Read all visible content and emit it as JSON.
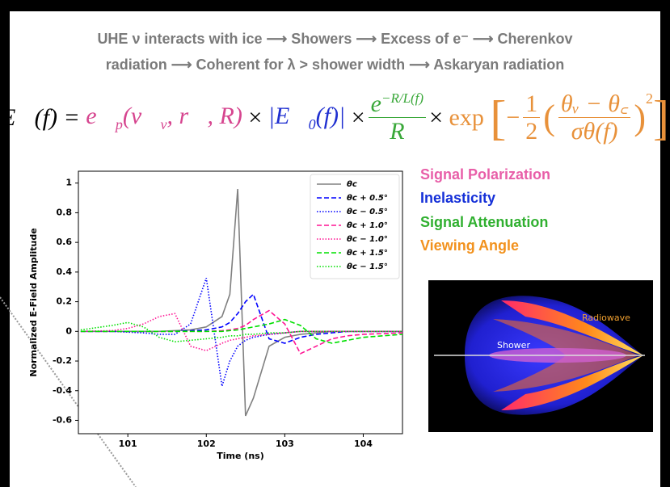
{
  "header": {
    "line1": "UHE ν interacts with ice ⟶ Showers ⟶ Excess of e⁻ ⟶ Cherenkov",
    "line2": "radiation ⟶ Coherent for λ > shower width ⟶ Askaryan radiation"
  },
  "equation": {
    "lhs": "E⃗(f) =",
    "pol_e": "e⃗",
    "pol_sub": "p",
    "pol_args1": "(v⃗",
    "pol_nu": "ν",
    "pol_args2": ", r⃗, R)",
    "times": "×",
    "amp": "|E⃗",
    "amp_sub": "0",
    "amp_rest": "(f)|",
    "att_num": "e",
    "att_exp": "−R/L(f)",
    "att_den": "R",
    "exp": "exp",
    "open": "[",
    "minus": "−",
    "half_num": "1",
    "half_den": "2",
    "paren_open": "(",
    "ang_num": "θᵥ − θ꜀",
    "ang_den": "σθ(f)",
    "paren_close": ")",
    "square": "2",
    "close": "]"
  },
  "legend_terms": [
    "Signal Polarization",
    "Inelasticity",
    "Signal Attenuation",
    "Viewing Angle"
  ],
  "image": {
    "shower": "Shower",
    "radiowave": "Radiowave"
  },
  "chart_data": {
    "type": "line",
    "xlabel": "Time (ns)",
    "ylabel": "Normalized E-Field Amplitude",
    "x": [
      100.4,
      100.8,
      101.0,
      101.2,
      101.4,
      101.6,
      101.8,
      102.0,
      102.2,
      102.3,
      102.4,
      102.5,
      102.6,
      102.8,
      103.0,
      103.2,
      103.4,
      103.6,
      103.8,
      104.0,
      104.5
    ],
    "series": [
      {
        "name": "θc",
        "color": "#808080",
        "dash": "solid",
        "values": [
          0,
          0,
          0,
          0,
          0,
          0.005,
          0.01,
          0.03,
          0.1,
          0.25,
          0.96,
          -0.57,
          -0.45,
          -0.1,
          -0.04,
          -0.02,
          -0.01,
          0,
          0,
          0,
          0
        ]
      },
      {
        "name": "θc + 0.5°",
        "color": "#0000ff",
        "dash": "dashed",
        "values": [
          0,
          0,
          0,
          0,
          0,
          0,
          0.005,
          0.01,
          0.03,
          0.06,
          0.12,
          0.2,
          0.25,
          -0.05,
          -0.08,
          -0.04,
          -0.02,
          -0.01,
          0,
          0,
          0
        ]
      },
      {
        "name": "θc − 0.5°",
        "color": "#0000ff",
        "dash": "dotted",
        "values": [
          0,
          0,
          -0.005,
          -0.01,
          -0.02,
          -0.02,
          0.05,
          0.36,
          -0.37,
          -0.2,
          -0.1,
          -0.06,
          -0.04,
          -0.02,
          -0.01,
          0,
          0,
          0,
          0,
          0,
          0
        ]
      },
      {
        "name": "θc + 1.0°",
        "color": "#ff1493",
        "dash": "dashed",
        "values": [
          0,
          0,
          0,
          0,
          0,
          0,
          0,
          0,
          0.005,
          0.01,
          0.02,
          0.04,
          0.08,
          0.14,
          0.05,
          -0.15,
          -0.1,
          -0.05,
          -0.03,
          -0.02,
          -0.01
        ]
      },
      {
        "name": "θc − 1.0°",
        "color": "#ff1493",
        "dash": "dotted",
        "values": [
          0,
          0.005,
          0.02,
          0.05,
          0.1,
          0.12,
          -0.1,
          -0.13,
          -0.08,
          -0.06,
          -0.05,
          -0.04,
          -0.03,
          -0.02,
          -0.01,
          0,
          0,
          0,
          0,
          0,
          0
        ]
      },
      {
        "name": "θc + 1.5°",
        "color": "#00e000",
        "dash": "dashed",
        "values": [
          0,
          0,
          0,
          0,
          0,
          0,
          0,
          0,
          0,
          0.005,
          0.01,
          0.02,
          0.03,
          0.05,
          0.08,
          0.04,
          -0.05,
          -0.08,
          -0.06,
          -0.04,
          -0.02
        ]
      },
      {
        "name": "θc − 1.5°",
        "color": "#00e000",
        "dash": "dotted",
        "values": [
          0.01,
          0.04,
          0.06,
          0.03,
          -0.04,
          -0.07,
          -0.06,
          -0.05,
          -0.04,
          -0.03,
          -0.03,
          -0.02,
          -0.02,
          -0.01,
          -0.01,
          0,
          0,
          0,
          0,
          0,
          0
        ]
      }
    ],
    "xlim": [
      100.37,
      104.5
    ],
    "ylim": [
      -0.69,
      1.08
    ],
    "xticks": [
      101,
      102,
      103,
      104
    ],
    "yticks": [
      -0.6,
      -0.4,
      -0.2,
      0.0,
      0.2,
      0.4,
      0.6,
      0.8,
      1.0
    ],
    "legend": "upper right",
    "grid": false
  }
}
